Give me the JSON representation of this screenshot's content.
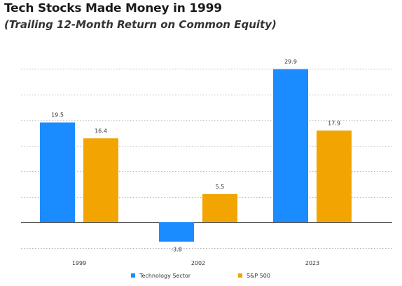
{
  "chart_data": {
    "type": "bar",
    "title": "Tech Stocks Made Money in 1999",
    "subtitle": "(Trailing 12-Month Return on Common Equity)",
    "categories": [
      "1999",
      "2002",
      "2023"
    ],
    "series": [
      {
        "name": "Technology Sector",
        "color": "#1a8cff",
        "values": [
          19.5,
          -3.8,
          29.9
        ]
      },
      {
        "name": "S&P 500",
        "color": "#f2a500",
        "values": [
          16.4,
          5.5,
          17.9
        ]
      }
    ],
    "ylim": [
      -5,
      30
    ],
    "grid": true,
    "grid_style": "dotted",
    "legend_position": "bottom-center",
    "data_labels": true
  }
}
